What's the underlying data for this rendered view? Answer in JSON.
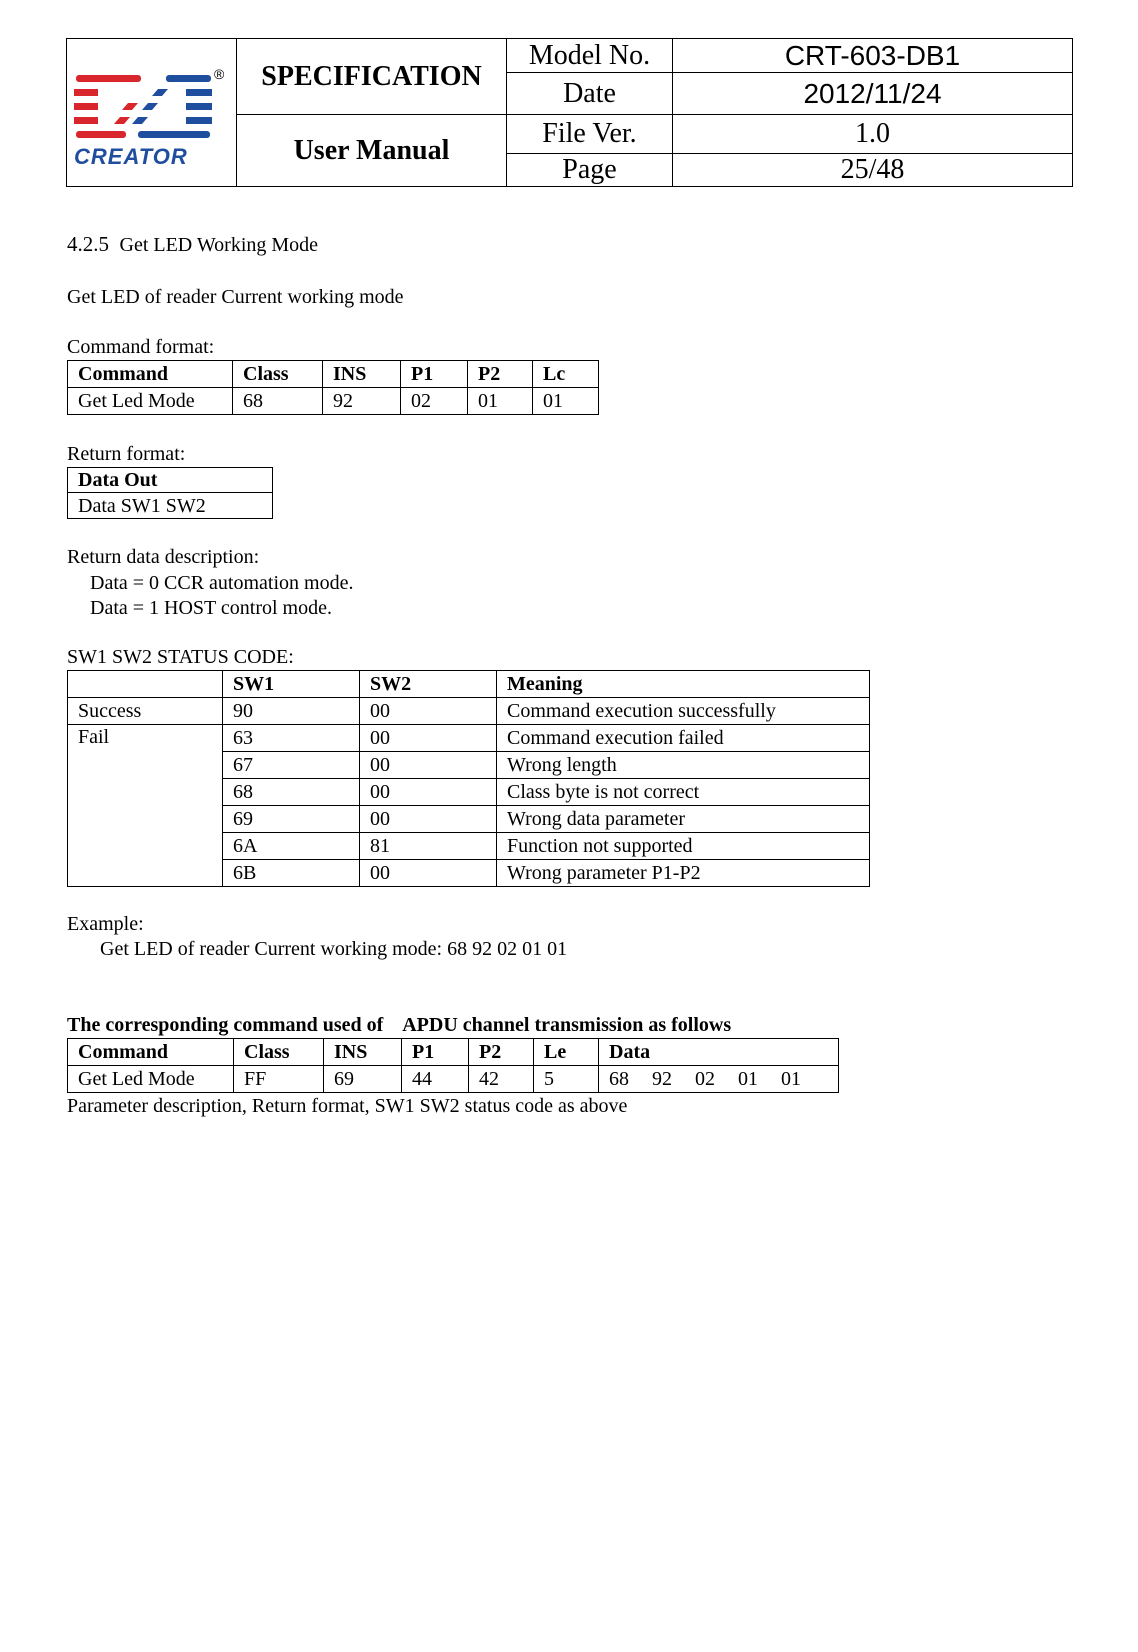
{
  "header": {
    "logo_text": "CREATOR",
    "registered_mark": "®",
    "title1": "SPECIFICATION",
    "title2": "User Manual",
    "rows": [
      {
        "label": "Model No.",
        "value": "CRT-603-DB1"
      },
      {
        "label": "Date",
        "value": "2012/11/24"
      },
      {
        "label": "File Ver.",
        "value": "1.0"
      },
      {
        "label": "Page",
        "value": "25/48"
      }
    ],
    "colors": {
      "logo_red": "#d9262c",
      "logo_blue": "#1f4e9e"
    }
  },
  "section": {
    "number": "4.2.5",
    "title": "Get LED Working Mode",
    "intro": "Get LED of reader Current working mode",
    "command_format_label": "Command format:",
    "command_table": {
      "headers": [
        "Command",
        "Class",
        "INS",
        "P1",
        "P2",
        "Lc"
      ],
      "row": [
        "Get Led Mode",
        "68",
        "92",
        "02",
        "01",
        "01"
      ]
    },
    "return_format_label": "Return format:",
    "return_table": {
      "header": "Data Out",
      "row": "Data SW1 SW2"
    },
    "return_desc_label": "Return data description:",
    "return_desc_lines": [
      "Data = 0 CCR automation mode.",
      "Data = 1 HOST control mode."
    ],
    "status_label": "SW1 SW2 STATUS CODE:",
    "status_table": {
      "headers": [
        "",
        "SW1",
        "SW2",
        "Meaning"
      ],
      "success_label": "Success",
      "fail_label": "Fail",
      "rows": [
        {
          "sw1": "90",
          "sw2": "00",
          "meaning": "Command execution successfully"
        },
        {
          "sw1": "63",
          "sw2": "00",
          "meaning": "Command execution failed"
        },
        {
          "sw1": "67",
          "sw2": "00",
          "meaning": "Wrong length"
        },
        {
          "sw1": "68",
          "sw2": "00",
          "meaning": "Class byte is not correct"
        },
        {
          "sw1": "69",
          "sw2": "00",
          "meaning": "Wrong data parameter"
        },
        {
          "sw1": "6A",
          "sw2": "81",
          "meaning": "Function not supported"
        },
        {
          "sw1": "6B",
          "sw2": "00",
          "meaning": "Wrong parameter P1-P2"
        }
      ]
    },
    "example_label": "Example:",
    "example_line": "Get LED of reader Current working mode: 68 92 02 01 01",
    "apdu_heading": "The corresponding command used of    APDU channel transmission as follows",
    "apdu_table": {
      "headers": [
        "Command",
        "Class",
        "INS",
        "P1",
        "P2",
        "Le",
        "Data"
      ],
      "row": [
        "Get Led Mode",
        "FF",
        "69",
        "44",
        "42",
        "5"
      ],
      "data": [
        "68",
        "92",
        "02",
        "01",
        "01"
      ]
    },
    "footer_note": "Parameter description, Return format, SW1 SW2 status code as above"
  }
}
